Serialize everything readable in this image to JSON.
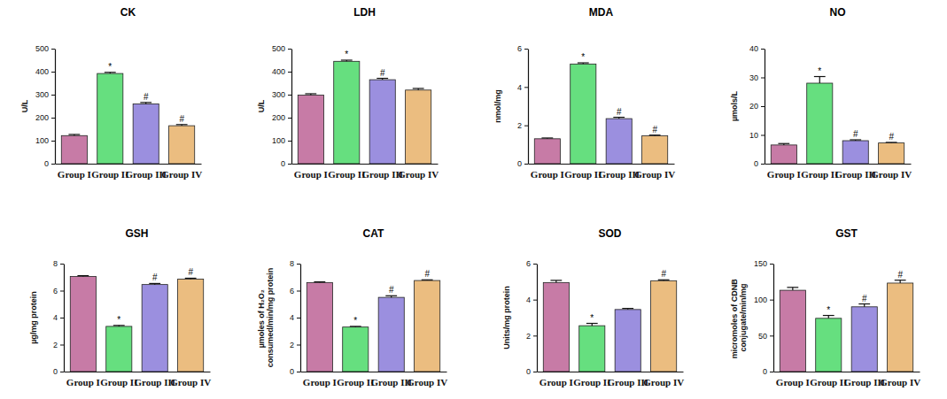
{
  "chart_data": [
    {
      "type": "bar",
      "title": "CK",
      "y_label": "U/L",
      "categories": [
        "Group I",
        "Group II",
        "Group III",
        "Group IV"
      ],
      "values": [
        122,
        392,
        260,
        165
      ],
      "errors": [
        5,
        5,
        6,
        5
      ],
      "annotations": [
        null,
        "*",
        "#",
        "#"
      ],
      "colors": [
        "#c77ba6",
        "#66df7f",
        "#9b8fdf",
        "#ebbd80"
      ],
      "ylim": [
        0,
        500
      ],
      "yticks": [
        0,
        100,
        200,
        300,
        400,
        500
      ]
    },
    {
      "type": "bar",
      "title": "LDH",
      "y_label": "U/L",
      "categories": [
        "Group I",
        "Group II",
        "Group III",
        "Group IV"
      ],
      "values": [
        298,
        445,
        365,
        320
      ],
      "errors": [
        6,
        5,
        6,
        7
      ],
      "annotations": [
        null,
        "*",
        "#",
        null
      ],
      "colors": [
        "#c77ba6",
        "#66df7f",
        "#9b8fdf",
        "#ebbd80"
      ],
      "ylim": [
        0,
        500
      ],
      "yticks": [
        0,
        100,
        200,
        300,
        400,
        500
      ]
    },
    {
      "type": "bar",
      "title": "MDA",
      "y_label": "nmol/mg",
      "categories": [
        "Group I",
        "Group II",
        "Group III",
        "Group IV"
      ],
      "values": [
        1.3,
        5.2,
        2.35,
        1.45
      ],
      "errors": [
        0.04,
        0.06,
        0.07,
        0.04
      ],
      "annotations": [
        null,
        "*",
        "#",
        "#"
      ],
      "colors": [
        "#c77ba6",
        "#66df7f",
        "#9b8fdf",
        "#ebbd80"
      ],
      "ylim": [
        0,
        6
      ],
      "yticks": [
        0,
        2,
        4,
        6
      ]
    },
    {
      "type": "bar",
      "title": "NO",
      "y_label": "µmols/L",
      "categories": [
        "Group I",
        "Group II",
        "Group III",
        "Group IV"
      ],
      "values": [
        6.5,
        28,
        8,
        7.2
      ],
      "errors": [
        0.5,
        2.3,
        0.3,
        0.2
      ],
      "annotations": [
        null,
        "*",
        "#",
        "#"
      ],
      "colors": [
        "#c77ba6",
        "#66df7f",
        "#9b8fdf",
        "#ebbd80"
      ],
      "ylim": [
        0,
        40
      ],
      "yticks": [
        0,
        10,
        20,
        30,
        40
      ]
    },
    {
      "type": "bar",
      "title": "GSH",
      "y_label": "µg/mg protein",
      "categories": [
        "Group I",
        "Group II",
        "Group III",
        "Group IV"
      ],
      "values": [
        7.05,
        3.35,
        6.45,
        6.85
      ],
      "errors": [
        0.06,
        0.07,
        0.08,
        0.07
      ],
      "annotations": [
        null,
        "*",
        "#",
        "#"
      ],
      "colors": [
        "#c77ba6",
        "#66df7f",
        "#9b8fdf",
        "#ebbd80"
      ],
      "ylim": [
        0,
        8
      ],
      "yticks": [
        0,
        2,
        4,
        6,
        8
      ]
    },
    {
      "type": "bar",
      "title": "CAT",
      "y_label": "µmoles of H₂O₂ consumed/min/mg protein",
      "categories": [
        "Group I",
        "Group II",
        "Group III",
        "Group IV"
      ],
      "values": [
        6.6,
        3.3,
        5.5,
        6.75
      ],
      "errors": [
        0.05,
        0.05,
        0.12,
        0.05
      ],
      "annotations": [
        null,
        "*",
        "#",
        "#"
      ],
      "colors": [
        "#c77ba6",
        "#66df7f",
        "#9b8fdf",
        "#ebbd80"
      ],
      "ylim": [
        0,
        8
      ],
      "yticks": [
        0,
        2,
        4,
        6,
        8
      ]
    },
    {
      "type": "bar",
      "title": "SOD",
      "y_label": "Units/mg protein",
      "categories": [
        "Group I",
        "Group II",
        "Group III",
        "Group IV"
      ],
      "values": [
        4.95,
        2.55,
        3.45,
        5.05
      ],
      "errors": [
        0.12,
        0.13,
        0.06,
        0.05
      ],
      "annotations": [
        null,
        "*",
        null,
        "#"
      ],
      "colors": [
        "#c77ba6",
        "#66df7f",
        "#9b8fdf",
        "#ebbd80"
      ],
      "ylim": [
        0,
        6
      ],
      "yticks": [
        0,
        2,
        4,
        6
      ]
    },
    {
      "type": "bar",
      "title": "GST",
      "y_label": "micromoles of CDNB conjugate/min/mg",
      "categories": [
        "Group I",
        "Group II",
        "Group III",
        "Group IV"
      ],
      "values": [
        113,
        74,
        90,
        123
      ],
      "errors": [
        4,
        4,
        4,
        4
      ],
      "annotations": [
        null,
        "*",
        "#",
        "#"
      ],
      "colors": [
        "#c77ba6",
        "#66df7f",
        "#9b8fdf",
        "#ebbd80"
      ],
      "ylim": [
        0,
        150
      ],
      "yticks": [
        0,
        50,
        100,
        150
      ]
    }
  ]
}
